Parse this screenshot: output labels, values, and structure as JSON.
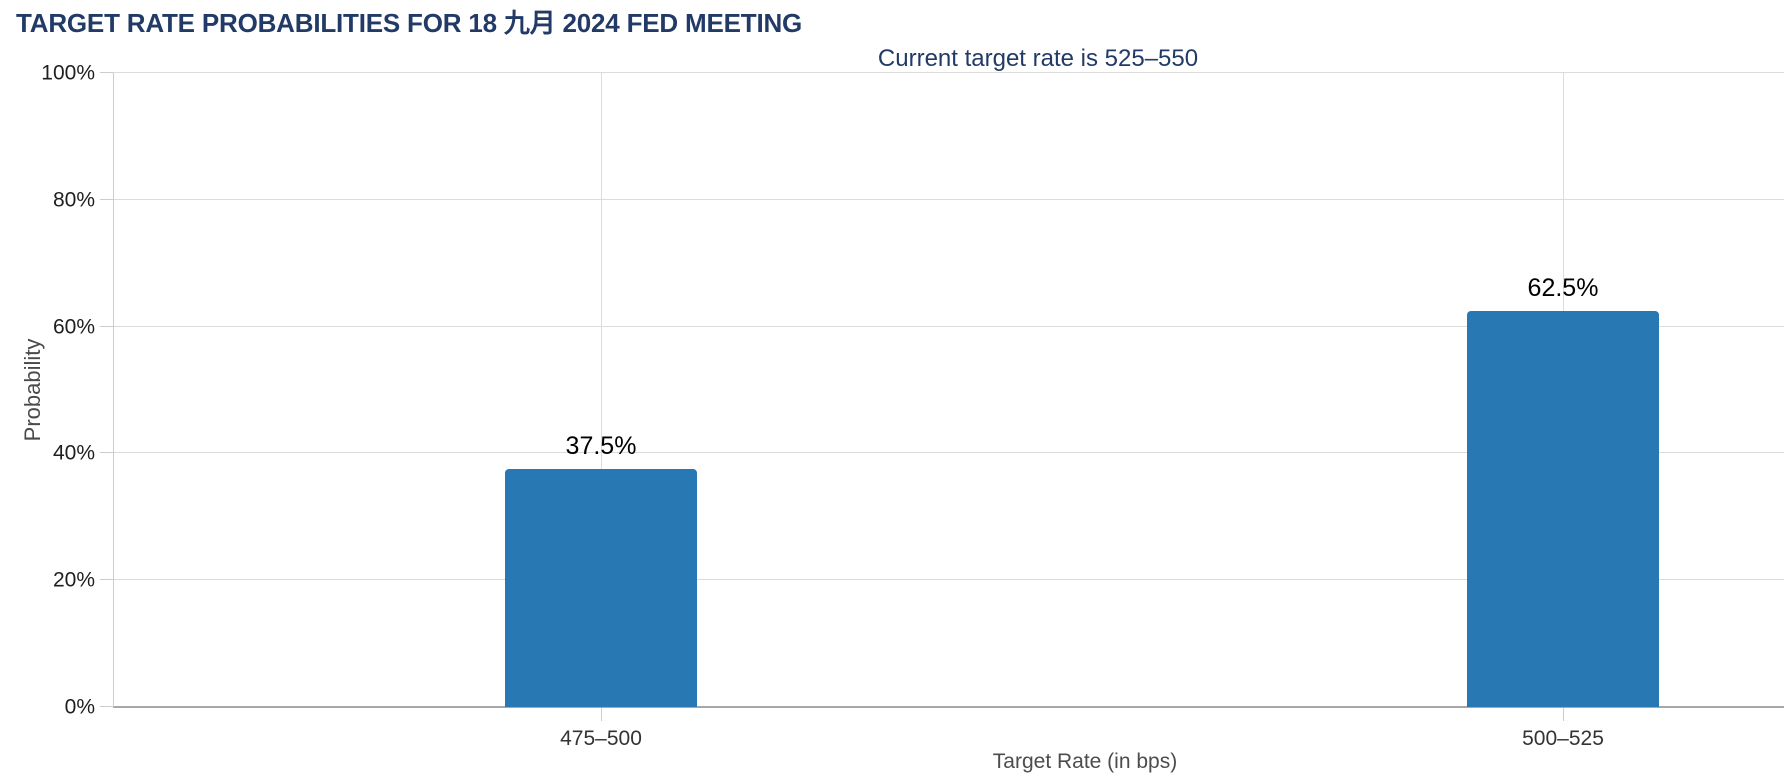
{
  "chart_data": {
    "type": "bar",
    "title": "TARGET RATE PROBABILITIES FOR 18 九月 2024 FED MEETING",
    "subtitle": "Current target rate is 525–550",
    "current_target_rate": "525–550",
    "categories": [
      "475–500",
      "500–525"
    ],
    "values": [
      37.5,
      62.5
    ],
    "value_labels": [
      "37.5%",
      "62.5%"
    ],
    "xlabel": "Target Rate (in bps)",
    "ylabel": "Probability",
    "ylim": [
      0,
      100
    ],
    "ytick_step": 20,
    "ytick_labels": [
      "0%",
      "20%",
      "40%",
      "60%",
      "80%",
      "100%"
    ],
    "grid": true,
    "legend": false,
    "bar_color": "#2878b4"
  },
  "colors": {
    "heading": "#223a66",
    "bar": "#2878b4",
    "gridline": "#dcdcdc",
    "axis_line": "#cccccc",
    "baseline": "#a8a8a8",
    "ytick_label": "#1f1f1f",
    "category_label": "#333333",
    "axis_title": "#4d4d4d",
    "value_label": "#000000"
  }
}
